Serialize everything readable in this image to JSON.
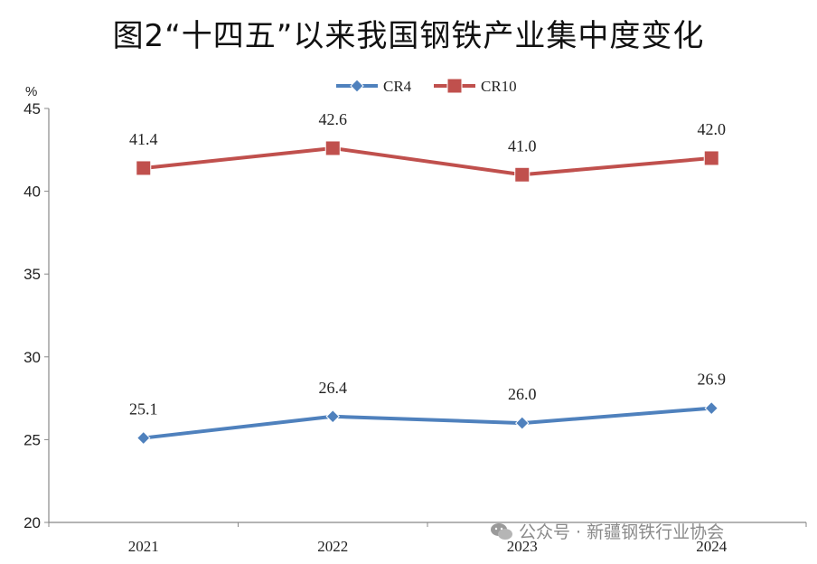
{
  "chart_data": {
    "type": "line",
    "title": "图2“十四五”以来我国钢铁产业集中度变化",
    "ylabel": "%",
    "categories": [
      "2021",
      "2022",
      "2023",
      "2024"
    ],
    "ylim": [
      20,
      45
    ],
    "yticks": [
      20,
      25,
      30,
      35,
      40,
      45
    ],
    "grid": false,
    "legend_position": "top-center",
    "series": [
      {
        "name": "CR4",
        "values": [
          25.1,
          26.4,
          26.0,
          26.9
        ],
        "labels": [
          "25.1",
          "26.4",
          "26.0",
          "26.9"
        ],
        "color": "#4f81bd",
        "marker": "diamond"
      },
      {
        "name": "CR10",
        "values": [
          41.4,
          42.6,
          41.0,
          42.0
        ],
        "labels": [
          "41.4",
          "42.6",
          "41.0",
          "42.0"
        ],
        "color": "#c0504d",
        "marker": "square"
      }
    ]
  },
  "watermark": {
    "text": "公众号 · 新疆钢铁行业协会"
  }
}
